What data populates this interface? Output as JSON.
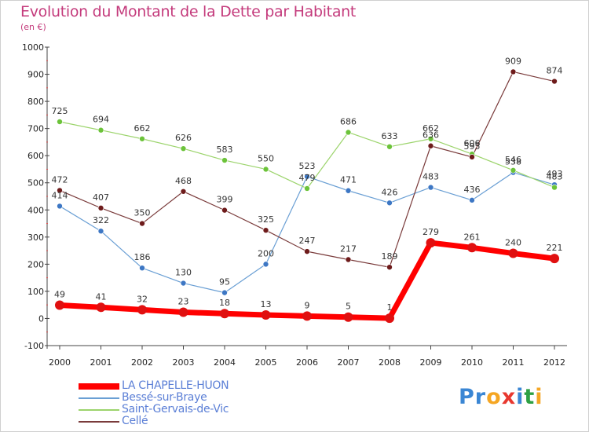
{
  "title": "Evolution du Montant de la Dette par Habitant",
  "unit_label": "(en €)",
  "logo": {
    "text": "Proxiti",
    "letters": [
      {
        "ch": "P",
        "color": "#3a86d4"
      },
      {
        "ch": "r",
        "color": "#3a86d4"
      },
      {
        "ch": "o",
        "color": "#f5a623"
      },
      {
        "ch": "x",
        "color": "#e8382f"
      },
      {
        "ch": "i",
        "color": "#3a86d4"
      },
      {
        "ch": "t",
        "color": "#2ea043"
      },
      {
        "ch": "i",
        "color": "#f5a623"
      }
    ]
  },
  "chart_data": {
    "type": "line",
    "title": "Evolution du Montant de la Dette par Habitant",
    "ylabel": "(en €)",
    "xlabel": "",
    "categories": [
      "2000",
      "2001",
      "2002",
      "2003",
      "2004",
      "2005",
      "2006",
      "2007",
      "2008",
      "2009",
      "2010",
      "2011",
      "2012"
    ],
    "ylim": [
      -100,
      1000
    ],
    "yticks": [
      -100,
      0,
      100,
      200,
      300,
      400,
      500,
      600,
      700,
      800,
      900,
      1000
    ],
    "grid": false,
    "legend_position": "bottom-left",
    "series": [
      {
        "name": "LA CHAPELLE-HUON",
        "color": "#ff0000",
        "dot_color": "#e01010",
        "width": 7,
        "marker": 6,
        "values": [
          49,
          41,
          32,
          23,
          18,
          13,
          9,
          5,
          1,
          279,
          261,
          240,
          221
        ]
      },
      {
        "name": "Bessé-sur-Braye",
        "color": "#6a9fd4",
        "dot_color": "#3d77c4",
        "width": 1.2,
        "marker": 3.5,
        "values": [
          414,
          322,
          186,
          130,
          95,
          200,
          523,
          471,
          426,
          483,
          436,
          538,
          493
        ]
      },
      {
        "name": "Saint-Gervais-de-Vic",
        "color": "#9cd46c",
        "dot_color": "#6cc33a",
        "width": 1.2,
        "marker": 3.5,
        "values": [
          725,
          694,
          662,
          626,
          583,
          550,
          479,
          686,
          633,
          662,
          606,
          546,
          483
        ]
      },
      {
        "name": "Cellé",
        "color": "#7a3b3b",
        "dot_color": "#6e1b1b",
        "width": 1.2,
        "marker": 3.5,
        "values": [
          472,
          407,
          350,
          468,
          399,
          325,
          247,
          217,
          189,
          636,
          595,
          909,
          874
        ]
      }
    ]
  }
}
